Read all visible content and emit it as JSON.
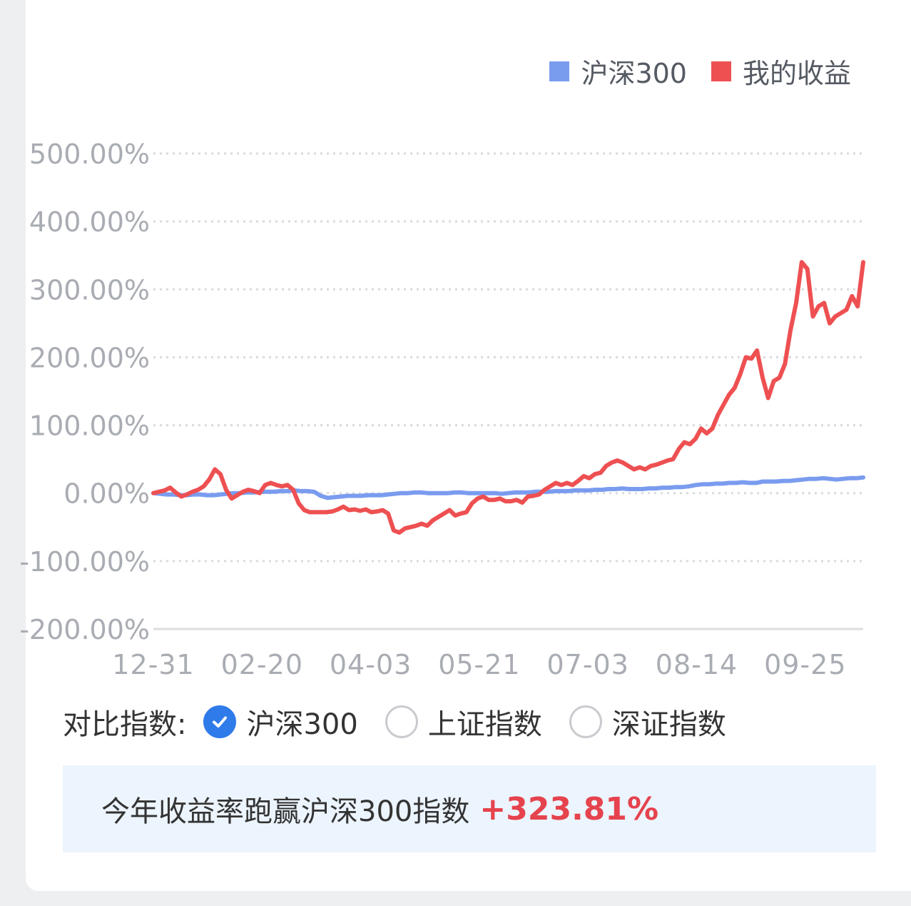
{
  "legend": [
    {
      "label": "沪深300",
      "color": "#7a9cef"
    },
    {
      "label": "我的收益",
      "color": "#ee5052"
    }
  ],
  "compare": {
    "label": "对比指数:",
    "options": [
      {
        "label": "沪深300",
        "checked": true
      },
      {
        "label": "上证指数",
        "checked": false
      },
      {
        "label": "深证指数",
        "checked": false
      }
    ]
  },
  "summary": {
    "text": "今年收益率跑赢沪深300指数",
    "value": "+323.81%"
  },
  "chart_data": {
    "type": "line",
    "ylim": [
      -200,
      500
    ],
    "yticks": [
      "500.00%",
      "400.00%",
      "300.00%",
      "200.00%",
      "100.00%",
      "0.00%",
      "-100.00%",
      "-200.00%"
    ],
    "ytick_values": [
      500,
      400,
      300,
      200,
      100,
      0,
      -100,
      -200
    ],
    "xticks": [
      "12-31",
      "02-20",
      "04-03",
      "05-21",
      "07-03",
      "08-14",
      "09-25"
    ],
    "grid": true,
    "legend_position": "top-right",
    "series": [
      {
        "name": "沪深300",
        "color": "#7a9cef",
        "values": [
          0,
          -1,
          -2,
          -2,
          -3,
          -3,
          -2,
          -2,
          -3,
          -3,
          -2,
          -1,
          0,
          0,
          1,
          1,
          2,
          2,
          2,
          3,
          3,
          4,
          3,
          3,
          2,
          -4,
          -7,
          -6,
          -5,
          -4,
          -4,
          -4,
          -3,
          -3,
          -3,
          -2,
          -1,
          0,
          0,
          1,
          1,
          0,
          0,
          0,
          0,
          1,
          1,
          0,
          0,
          0,
          0,
          0,
          -1,
          0,
          1,
          1,
          1,
          2,
          2,
          2,
          3,
          3,
          3,
          4,
          4,
          4,
          5,
          5,
          6,
          6,
          7,
          6,
          6,
          6,
          7,
          7,
          8,
          8,
          9,
          9,
          10,
          12,
          13,
          13,
          14,
          14,
          15,
          15,
          16,
          15,
          15,
          17,
          17,
          17,
          18,
          18,
          19,
          20,
          21,
          21,
          22,
          21,
          20,
          21,
          22,
          22,
          23
        ]
      },
      {
        "name": "我的收益",
        "color": "#ee5052",
        "values": [
          0,
          2,
          4,
          8,
          1,
          -5,
          -2,
          2,
          5,
          10,
          20,
          35,
          28,
          5,
          -8,
          -3,
          2,
          5,
          3,
          0,
          12,
          15,
          12,
          10,
          12,
          5,
          -15,
          -25,
          -28,
          -28,
          -28,
          -28,
          -27,
          -24,
          -20,
          -25,
          -24,
          -26,
          -24,
          -28,
          -27,
          -25,
          -30,
          -55,
          -58,
          -52,
          -50,
          -48,
          -45,
          -48,
          -40,
          -35,
          -30,
          -25,
          -33,
          -30,
          -28,
          -15,
          -8,
          -5,
          -10,
          -10,
          -8,
          -12,
          -12,
          -10,
          -14,
          -5,
          -4,
          -2,
          5,
          10,
          15,
          12,
          15,
          12,
          18,
          25,
          22,
          28,
          30,
          40,
          45,
          48,
          45,
          40,
          35,
          38,
          35,
          40,
          42,
          45,
          48,
          50,
          65,
          75,
          72,
          80,
          95,
          88,
          95,
          115,
          130,
          145,
          155,
          175,
          200,
          198,
          210,
          170,
          140,
          165,
          170,
          190,
          240,
          280,
          340,
          330,
          260,
          275,
          280,
          250,
          260,
          265,
          270,
          290,
          275,
          340
        ]
      }
    ]
  }
}
